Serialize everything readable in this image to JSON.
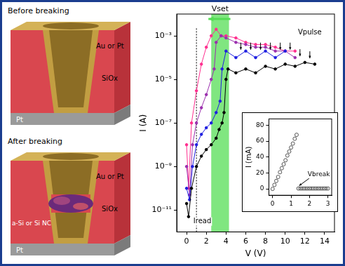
{
  "diagram": {
    "panels": [
      {
        "title": "Before breaking",
        "top_electrode": "Au or Pt",
        "insulator": "SiOx",
        "bottom_electrode": "Pt"
      },
      {
        "title": "After breaking",
        "top_electrode": "Au or Pt",
        "insulator": "SiOx",
        "bottom_electrode": "Pt",
        "filament": "a-Si or Si NC"
      }
    ]
  },
  "chart_data": [
    {
      "type": "line",
      "x_label": "V (V)",
      "y_label": "I (A)",
      "log": "y",
      "grid": false,
      "xlim": [
        -1,
        15
      ],
      "xticks": [
        0,
        2,
        4,
        6,
        8,
        10,
        12,
        14
      ],
      "ylim": [
        1e-12,
        0.01
      ],
      "yticks": [
        {
          "value": 1e-11,
          "label": "10⁻¹¹"
        },
        {
          "value": 1e-09,
          "label": "10⁻⁹"
        },
        {
          "value": 1e-07,
          "label": "10⁻⁷"
        },
        {
          "value": 1e-05,
          "label": "10⁻⁵"
        },
        {
          "value": 0.001,
          "label": "10⁻³"
        }
      ],
      "series": [
        {
          "color": "#000000",
          "marker": "circle",
          "line_style": "solid",
          "x": [
            0,
            0.2,
            0.5,
            1,
            1.5,
            2,
            2.5,
            3,
            3.3,
            3.6,
            3.8,
            4.0,
            4.2,
            5,
            6,
            7,
            8,
            9,
            10,
            11,
            12,
            13
          ],
          "values": [
            2e-11,
            5e-12,
            1e-10,
            1e-09,
            3e-09,
            6e-09,
            1e-08,
            2e-08,
            5e-08,
            1e-07,
            3e-07,
            1e-05,
            3e-05,
            2e-05,
            3e-05,
            2e-05,
            4e-05,
            3e-05,
            5e-05,
            4e-05,
            6e-05,
            5e-05
          ]
        },
        {
          "color": "#1f1fe0",
          "marker": "circle",
          "line_style": "solid",
          "x": [
            0,
            0.3,
            0.6,
            1,
            1.5,
            2,
            2.5,
            3,
            3.4,
            3.6,
            4,
            5,
            6,
            7,
            8,
            9,
            10
          ],
          "values": [
            1e-10,
            3e-11,
            1e-09,
            1e-08,
            3e-08,
            6e-08,
            1e-07,
            3e-07,
            1e-06,
            3e-05,
            0.0002,
            0.0001,
            0.0002,
            0.0001,
            0.0002,
            0.0001,
            0.0002
          ]
        },
        {
          "color": "#9b2fae",
          "marker": "circle",
          "line_style": "solid",
          "x": [
            0,
            0.3,
            0.6,
            1,
            1.5,
            2,
            2.5,
            2.8,
            3,
            3.5,
            4,
            5,
            6,
            7,
            8,
            9,
            10,
            11
          ],
          "values": [
            1e-09,
            5e-11,
            1e-08,
            1e-07,
            5e-07,
            2e-06,
            1e-05,
            3e-05,
            0.0005,
            0.001,
            0.0008,
            0.0005,
            0.0004,
            0.0003,
            0.0003,
            0.0002,
            0.0002,
            0.0001
          ]
        },
        {
          "color": "#ff2f8f",
          "marker": "circle",
          "line_style": "solid",
          "x": [
            0,
            0.2,
            0.5,
            1,
            1.5,
            2,
            2.5,
            3,
            3.5,
            4,
            5,
            6,
            7,
            8,
            9,
            10,
            11
          ],
          "values": [
            1e-08,
            1e-10,
            1e-07,
            3e-06,
            5e-05,
            0.0003,
            0.001,
            0.002,
            0.001,
            0.001,
            0.0008,
            0.0005,
            0.0004,
            0.0004,
            0.0003,
            0.0002,
            0.0002
          ]
        }
      ],
      "vset_band": {
        "from": 2.5,
        "to": 4.3,
        "label": "Vset",
        "color": "#55dd55"
      },
      "read_line": {
        "x": 1,
        "label": "Iread",
        "label_x": 1.6,
        "label_y": 3e-12
      },
      "pulse_arrows": [
        {
          "x": 5.5,
          "y": 0.0002
        },
        {
          "x": 6.5,
          "y": 0.0002
        },
        {
          "x": 7.5,
          "y": 0.0002
        },
        {
          "x": 8.5,
          "y": 0.0002
        },
        {
          "x": 9.5,
          "y": 0.0002
        },
        {
          "x": 10.5,
          "y": 0.0002
        },
        {
          "x": 11.5,
          "y": 0.0001
        },
        {
          "x": 12.5,
          "y": 8e-05
        }
      ],
      "pulse_label": {
        "text": "Vpulse",
        "x": 12.5,
        "y": 0.001
      }
    },
    {
      "type": "scatter",
      "y_label": "I (mA)",
      "grid": false,
      "xlim": [
        -0.2,
        3.2
      ],
      "xticks": [
        0,
        1,
        2,
        3
      ],
      "ylim": [
        -8,
        88
      ],
      "yticks": [
        0,
        20,
        40,
        60,
        80
      ],
      "series": [
        {
          "color": "#555555",
          "marker": "circle",
          "x": [
            0,
            0.1,
            0.2,
            0.3,
            0.4,
            0.5,
            0.6,
            0.7,
            0.8,
            0.9,
            1.0,
            1.1,
            1.2,
            1.3,
            1.4,
            1.5,
            1.6,
            1.7,
            1.8,
            1.9,
            2.0,
            2.1,
            2.2,
            2.3,
            2.4,
            2.5,
            2.6,
            2.7,
            2.8,
            2.9,
            3.0
          ],
          "values": [
            0,
            5,
            10,
            15,
            21,
            26,
            31,
            36,
            42,
            47,
            52,
            57,
            63,
            68,
            0.5,
            0.5,
            0.5,
            0.5,
            0.5,
            0.5,
            0.5,
            0.5,
            0.5,
            0.5,
            0.5,
            0.5,
            0.5,
            0.5,
            0.5,
            0.5,
            0.5
          ]
        }
      ],
      "annotation": {
        "text": "Vbreak",
        "x": 1.9,
        "y": 14,
        "arrow_x": 1.4,
        "arrow_y": 0.5
      }
    }
  ]
}
